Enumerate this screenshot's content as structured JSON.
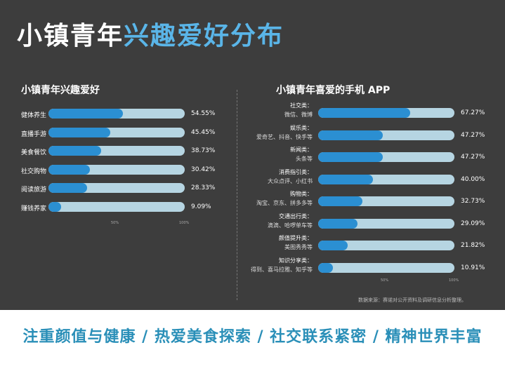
{
  "title": {
    "part1": "小镇青年",
    "part2": "兴趣爱好分布"
  },
  "source": "数据来源：赛诺对公开资料及调研信息分析整理。",
  "footer": "注重颜值与健康 / 热爱美食探索 / 社交联系紧密 / 精神世界丰富",
  "colors": {
    "panel": "#3d3d3d",
    "bar": "#2b8fd2",
    "track": "#b6d5e2",
    "accent": "#5ab5e8",
    "footer": "#2a8fb8"
  },
  "chart_data": [
    {
      "type": "bar",
      "orientation": "horizontal",
      "title": "小镇青年兴趣爱好",
      "categories": [
        "健体养生",
        "直播手游",
        "美食餐饮",
        "社交购物",
        "阅读旅游",
        "赚钱养家"
      ],
      "values": [
        54.55,
        45.45,
        38.73,
        30.42,
        28.33,
        9.09
      ],
      "value_labels": [
        "54.55%",
        "45.45%",
        "38.73%",
        "30.42%",
        "28.33%",
        "9.09%"
      ],
      "xlim": [
        0,
        100
      ],
      "tick_labels": [
        "50%",
        "100%"
      ]
    },
    {
      "type": "bar",
      "orientation": "horizontal",
      "title": "小镇青年喜爱的手机 APP",
      "categories": [
        "社交类：",
        "娱乐类：",
        "新闻类：",
        "消费指引类：",
        "购物类：",
        "交通出行类：",
        "颜值提升类：",
        "知识分享类："
      ],
      "examples": [
        "微信、微博",
        "爱奇艺、抖音、快手等",
        "头条等",
        "大众点评、小红书",
        "淘宝、京东、拼多多等",
        "滴滴、哈啰单车等",
        "美图秀秀等",
        "得到、喜马拉雅、知乎等"
      ],
      "values": [
        67.27,
        47.27,
        47.27,
        40.0,
        32.73,
        29.09,
        21.82,
        10.91
      ],
      "value_labels": [
        "67.27%",
        "47.27%",
        "47.27%",
        "40.00%",
        "32.73%",
        "29.09%",
        "21.82%",
        "10.91%"
      ],
      "xlim": [
        0,
        100
      ],
      "tick_labels": [
        "50%",
        "100%"
      ]
    }
  ]
}
